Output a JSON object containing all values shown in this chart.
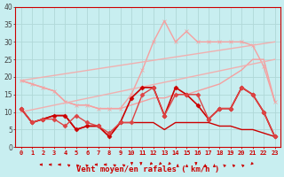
{
  "xlabel": "Vent moyen/en rafales ( km/h )",
  "background_color": "#c8eef0",
  "grid_color": "#aacccc",
  "xlim": [
    -0.5,
    23.5
  ],
  "ylim": [
    0,
    40
  ],
  "yticks": [
    0,
    5,
    10,
    15,
    20,
    25,
    30,
    35,
    40
  ],
  "xticks": [
    0,
    1,
    2,
    3,
    4,
    5,
    6,
    7,
    8,
    9,
    10,
    11,
    12,
    13,
    14,
    15,
    16,
    17,
    18,
    19,
    20,
    21,
    22,
    23
  ],
  "lines": [
    {
      "label": "line1_light_smooth",
      "x": [
        0,
        1,
        2,
        3,
        4,
        5,
        6,
        7,
        8,
        9,
        10,
        11,
        12,
        13,
        14,
        15,
        16,
        17,
        18,
        19,
        20,
        21,
        22,
        23
      ],
      "y": [
        19,
        18,
        17,
        16,
        13,
        12,
        12,
        11,
        11,
        11,
        12,
        13,
        14,
        14,
        15,
        15,
        16,
        17,
        18,
        20,
        22,
        25,
        25,
        13
      ],
      "color": "#f5a0a0",
      "linewidth": 1.0,
      "marker": null,
      "linestyle": "-"
    },
    {
      "label": "line2_light_upper",
      "x": [
        0,
        1,
        2,
        3,
        4,
        5,
        6,
        7,
        8,
        9,
        10,
        11,
        12,
        13,
        14,
        15,
        16,
        17,
        18,
        19,
        20,
        21,
        22,
        23
      ],
      "y": [
        19,
        18,
        17,
        16,
        13,
        12,
        12,
        11,
        11,
        11,
        15,
        22,
        30,
        36,
        30,
        33,
        30,
        30,
        30,
        30,
        30,
        29,
        23,
        13
      ],
      "color": "#f5a0a0",
      "linewidth": 1.0,
      "marker": "x",
      "markersize": 3,
      "linestyle": "-"
    },
    {
      "label": "line3_light_rising1",
      "x": [
        0,
        23
      ],
      "y": [
        10,
        25
      ],
      "color": "#f0b0b0",
      "linewidth": 1.0,
      "marker": null,
      "linestyle": "-"
    },
    {
      "label": "line4_light_rising2",
      "x": [
        0,
        23
      ],
      "y": [
        19,
        30
      ],
      "color": "#f0b0b0",
      "linewidth": 1.0,
      "marker": null,
      "linestyle": "-"
    },
    {
      "label": "line5_dark_flat",
      "x": [
        0,
        1,
        2,
        3,
        4,
        5,
        6,
        7,
        8,
        9,
        10,
        11,
        12,
        13,
        14,
        15,
        16,
        17,
        18,
        19,
        20,
        21,
        22,
        23
      ],
      "y": [
        11,
        7,
        8,
        9,
        9,
        5,
        6,
        6,
        3,
        7,
        7,
        7,
        7,
        5,
        7,
        7,
        7,
        7,
        6,
        6,
        5,
        5,
        4,
        3
      ],
      "color": "#cc0000",
      "linewidth": 1.0,
      "marker": null,
      "linestyle": "-"
    },
    {
      "label": "line6_dark_variable",
      "x": [
        0,
        1,
        2,
        3,
        4,
        5,
        6,
        7,
        8,
        9,
        10,
        11,
        12,
        13,
        14,
        15,
        16,
        17,
        18,
        19,
        20,
        21,
        22,
        23
      ],
      "y": [
        11,
        7,
        8,
        9,
        9,
        5,
        6,
        6,
        3,
        7,
        14,
        17,
        17,
        9,
        17,
        15,
        12,
        8,
        11,
        11,
        17,
        15,
        10,
        3
      ],
      "color": "#cc0000",
      "linewidth": 1.2,
      "marker": "D",
      "markersize": 2.5,
      "linestyle": "-"
    },
    {
      "label": "line7_mid_variable",
      "x": [
        0,
        1,
        2,
        3,
        4,
        5,
        6,
        7,
        8,
        9,
        10,
        11,
        12,
        13,
        14,
        15,
        16,
        17,
        18,
        19,
        20,
        21,
        22,
        23
      ],
      "y": [
        11,
        7,
        8,
        8,
        6,
        9,
        7,
        6,
        4,
        7,
        7,
        15,
        17,
        9,
        15,
        15,
        15,
        8,
        11,
        11,
        17,
        15,
        10,
        3
      ],
      "color": "#dd4444",
      "linewidth": 1.0,
      "marker": "D",
      "markersize": 2.5,
      "linestyle": "-"
    }
  ],
  "wind_symbols": {
    "x": [
      0,
      1,
      2,
      3,
      4,
      5,
      6,
      7,
      8,
      9,
      10,
      11,
      12,
      13,
      14,
      15,
      16,
      17,
      18,
      19,
      20,
      21,
      22,
      23
    ],
    "angles_deg": [
      180,
      180,
      180,
      150,
      135,
      135,
      180,
      180,
      150,
      150,
      270,
      270,
      225,
      225,
      225,
      90,
      90,
      270,
      90,
      90,
      135,
      135,
      135,
      225
    ],
    "color": "#cc0000"
  }
}
